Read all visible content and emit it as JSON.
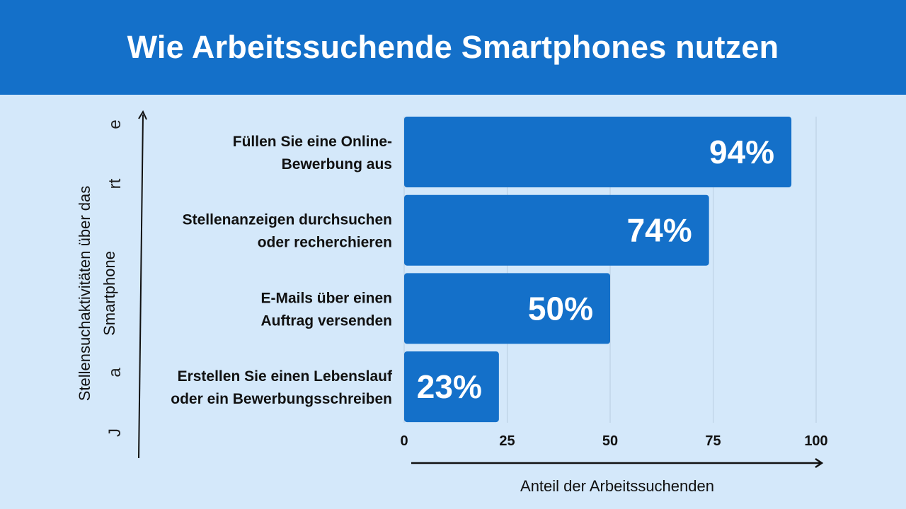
{
  "colors": {
    "header": "#1470c9",
    "background": "#d4e8fa",
    "bar": "#1470c9",
    "grid": "#b8cde0",
    "axis": "#111111"
  },
  "chart_data": {
    "type": "bar",
    "orientation": "horizontal",
    "title": "Wie Arbeitssuchende Smartphones nutzen",
    "categories": [
      [
        "Füllen Sie eine Online-",
        "Bewerbung aus"
      ],
      [
        "Stellenanzeigen durchsuchen",
        "oder recherchieren"
      ],
      [
        "E-Mails über einen",
        "Auftrag versenden"
      ],
      [
        "Erstellen Sie einen Lebenslauf",
        "oder ein Bewerbungsschreiben"
      ]
    ],
    "values": [
      94,
      74,
      50,
      23
    ],
    "data_labels": [
      "94%",
      "74%",
      "50%",
      "23%"
    ],
    "xlabel": "Anteil der Arbeitssuchenden",
    "ylabel": [
      "Stellensuchaktivitäten über das",
      "Smartphone"
    ],
    "xlim": [
      0,
      100
    ],
    "xticks": [
      "0",
      "25",
      "50",
      "75",
      "100"
    ],
    "grid": "vertical",
    "legend": "none"
  },
  "stray_letters": [
    "J",
    "a",
    "rt",
    "e"
  ]
}
